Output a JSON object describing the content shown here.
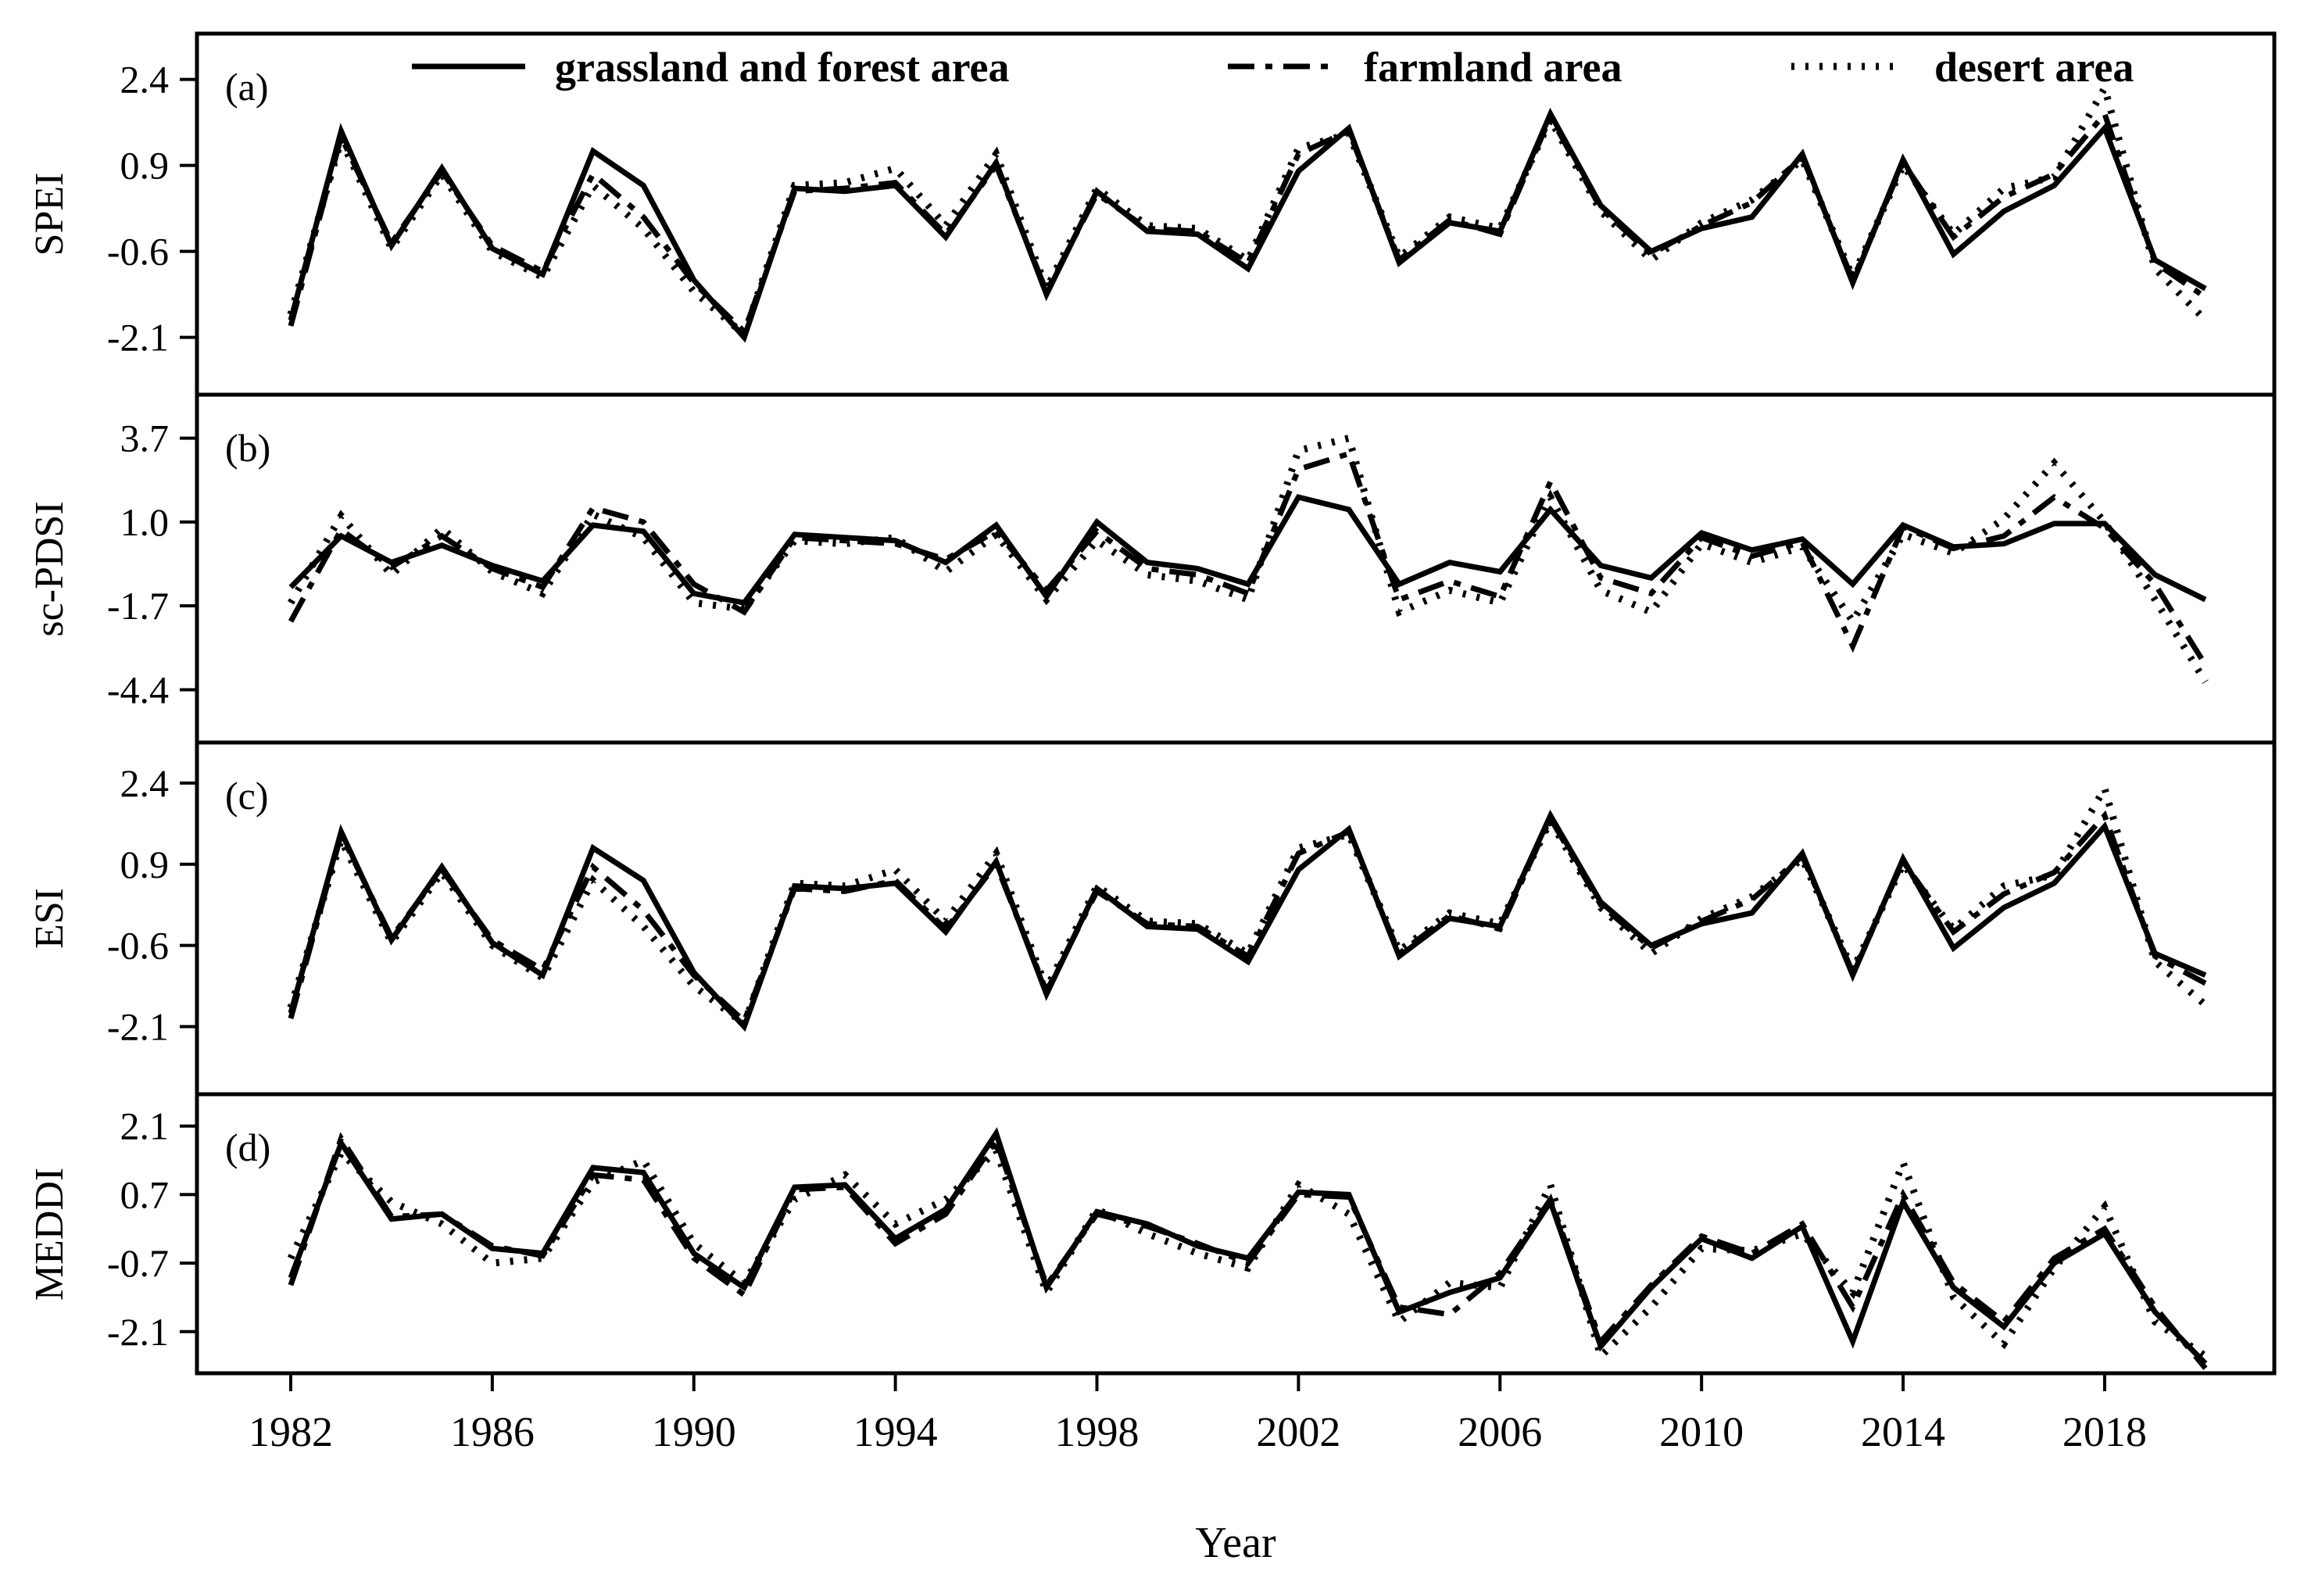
{
  "figure": {
    "xlabel": "Year",
    "x_tick_years": [
      1982,
      1986,
      1990,
      1994,
      1998,
      2002,
      2006,
      2010,
      2014,
      2018
    ],
    "years": [
      1982,
      1983,
      1984,
      1985,
      1986,
      1987,
      1988,
      1989,
      1990,
      1991,
      1992,
      1993,
      1994,
      1995,
      1996,
      1997,
      1998,
      1999,
      2000,
      2001,
      2002,
      2003,
      2004,
      2005,
      2006,
      2007,
      2008,
      2009,
      2010,
      2011,
      2012,
      2013,
      2014,
      2015,
      2016,
      2017,
      2018,
      2019,
      2020
    ],
    "legend": [
      {
        "label": "grassland and forest area",
        "style": "solid"
      },
      {
        "label": "farmland area",
        "style": "dashdot"
      },
      {
        "label": "desert area",
        "style": "dotted"
      }
    ],
    "colors": {
      "line": "#000000",
      "background": "#ffffff"
    }
  },
  "chart_data": [
    {
      "type": "line",
      "panel": "(a)",
      "ylabel": "SPEI",
      "yticks": [
        2.4,
        0.9,
        -0.6,
        -2.1
      ],
      "ylim": [
        -3.1,
        3.2
      ],
      "grid": false,
      "legend_position": "top-inside",
      "series": [
        {
          "name": "grassland and forest area",
          "values": [
            -1.8,
            1.5,
            -0.5,
            0.85,
            -0.55,
            -1.0,
            1.15,
            0.55,
            -1.1,
            -2.1,
            0.5,
            0.45,
            0.55,
            -0.35,
            0.95,
            -1.35,
            0.45,
            -0.25,
            -0.3,
            -0.9,
            0.8,
            1.55,
            -0.8,
            -0.1,
            -0.25,
            1.8,
            0.2,
            -0.6,
            -0.2,
            0.0,
            1.1,
            -1.15,
            1.0,
            -0.65,
            0.1,
            0.55,
            1.55,
            -0.75,
            -1.25
          ]
        },
        {
          "name": "farmland area",
          "values": [
            -1.9,
            1.4,
            -0.45,
            0.8,
            -0.5,
            -0.95,
            0.75,
            0.0,
            -1.15,
            -2.0,
            0.45,
            0.5,
            0.6,
            -0.3,
            0.9,
            -1.3,
            0.4,
            -0.2,
            -0.25,
            -0.8,
            1.1,
            1.5,
            -0.75,
            -0.05,
            -0.3,
            1.75,
            0.15,
            -0.65,
            -0.15,
            0.25,
            1.05,
            -1.1,
            0.95,
            -0.35,
            0.35,
            0.75,
            1.8,
            -0.8,
            -1.4
          ]
        },
        {
          "name": "desert area",
          "values": [
            -1.7,
            1.35,
            -0.55,
            0.75,
            -0.6,
            -1.05,
            0.55,
            -0.2,
            -1.3,
            -2.05,
            0.55,
            0.6,
            0.85,
            -0.15,
            1.1,
            -1.25,
            0.5,
            -0.15,
            -0.2,
            -0.75,
            1.2,
            1.45,
            -0.7,
            0.0,
            -0.2,
            1.7,
            0.1,
            -0.75,
            -0.1,
            0.3,
            1.0,
            -1.05,
            0.9,
            -0.3,
            0.5,
            0.7,
            2.25,
            -0.9,
            -1.8
          ]
        }
      ]
    },
    {
      "type": "line",
      "panel": "(b)",
      "ylabel": "sc-PDSI",
      "yticks": [
        3.7,
        1.0,
        -1.7,
        -4.4
      ],
      "ylim": [
        -6.1,
        5.1
      ],
      "grid": false,
      "series": [
        {
          "name": "grassland and forest area",
          "values": [
            -1.1,
            0.55,
            -0.3,
            0.25,
            -0.4,
            -0.9,
            0.9,
            0.7,
            -1.3,
            -1.6,
            0.6,
            0.5,
            0.4,
            -0.3,
            0.9,
            -1.4,
            1.0,
            -0.3,
            -0.5,
            -1.0,
            1.8,
            1.4,
            -1.0,
            -0.3,
            -0.6,
            1.4,
            -0.4,
            -0.8,
            0.65,
            0.1,
            0.45,
            -1.0,
            0.9,
            0.2,
            0.3,
            0.95,
            0.95,
            -0.7,
            -1.5
          ]
        },
        {
          "name": "farmland area",
          "values": [
            -2.2,
            0.75,
            -0.45,
            0.55,
            -0.5,
            -1.1,
            1.45,
            1.0,
            -1.0,
            -1.9,
            0.5,
            0.4,
            0.3,
            -0.2,
            0.7,
            -1.2,
            0.7,
            -0.5,
            -0.7,
            -1.3,
            2.7,
            3.2,
            -1.5,
            -0.9,
            -1.4,
            2.3,
            -0.8,
            -1.3,
            0.5,
            -0.1,
            0.35,
            -3.0,
            0.85,
            0.15,
            0.55,
            1.8,
            0.8,
            -1.0,
            -3.6
          ]
        },
        {
          "name": "desert area",
          "values": [
            -1.6,
            1.2,
            -0.7,
            0.8,
            -0.6,
            -1.3,
            1.25,
            0.5,
            -1.6,
            -1.8,
            0.4,
            0.3,
            0.5,
            -0.6,
            0.6,
            -1.5,
            0.4,
            -0.7,
            -0.9,
            -1.5,
            3.3,
            3.7,
            -1.9,
            -1.2,
            -1.6,
            1.8,
            -1.2,
            -1.9,
            0.3,
            -0.3,
            0.2,
            -2.2,
            0.6,
            0.0,
            1.1,
            2.9,
            1.0,
            -1.5,
            -4.15
          ]
        }
      ]
    },
    {
      "type": "line",
      "panel": "(c)",
      "ylabel": "ESI",
      "yticks": [
        2.4,
        0.9,
        -0.6,
        -2.1
      ],
      "ylim": [
        -3.35,
        3.15
      ],
      "grid": false,
      "series": [
        {
          "name": "grassland and forest area",
          "values": [
            -1.85,
            1.5,
            -0.5,
            0.85,
            -0.55,
            -1.15,
            1.2,
            0.6,
            -1.1,
            -2.1,
            0.5,
            0.45,
            0.55,
            -0.35,
            0.95,
            -1.5,
            0.45,
            -0.25,
            -0.3,
            -0.9,
            0.8,
            1.55,
            -0.8,
            -0.1,
            -0.25,
            1.8,
            0.2,
            -0.6,
            -0.2,
            0.0,
            1.1,
            -1.15,
            1.0,
            -0.65,
            0.1,
            0.55,
            1.6,
            -0.75,
            -1.15
          ]
        },
        {
          "name": "farmland area",
          "values": [
            -1.95,
            1.45,
            -0.45,
            0.8,
            -0.5,
            -1.05,
            0.85,
            0.05,
            -1.15,
            -2.0,
            0.45,
            0.4,
            0.6,
            -0.3,
            0.9,
            -1.45,
            0.4,
            -0.2,
            -0.25,
            -0.8,
            1.1,
            1.5,
            -0.75,
            -0.05,
            -0.3,
            1.75,
            0.15,
            -0.65,
            -0.15,
            0.25,
            1.05,
            -1.1,
            0.95,
            -0.35,
            0.35,
            0.75,
            1.8,
            -0.8,
            -1.3
          ]
        },
        {
          "name": "desert area",
          "values": [
            -1.75,
            1.35,
            -0.55,
            0.75,
            -0.6,
            -1.2,
            0.6,
            -0.25,
            -1.35,
            -2.05,
            0.55,
            0.5,
            0.8,
            -0.15,
            1.1,
            -1.4,
            0.5,
            -0.15,
            -0.2,
            -0.75,
            1.2,
            1.45,
            -0.7,
            0.0,
            -0.2,
            1.7,
            0.1,
            -0.75,
            -0.1,
            0.3,
            1.0,
            -1.05,
            0.9,
            -0.3,
            0.5,
            0.7,
            2.3,
            -0.9,
            -1.7
          ]
        }
      ]
    },
    {
      "type": "line",
      "panel": "(d)",
      "ylabel": "MEDDI",
      "yticks": [
        2.1,
        0.7,
        -0.7,
        -2.1
      ],
      "ylim": [
        -2.95,
        2.75
      ],
      "grid": false,
      "series": [
        {
          "name": "grassland and forest area",
          "values": [
            -1.0,
            1.75,
            0.2,
            0.3,
            -0.4,
            -0.5,
            1.25,
            1.15,
            -0.5,
            -1.2,
            0.85,
            0.9,
            -0.2,
            0.4,
            1.95,
            -1.2,
            0.35,
            0.1,
            -0.35,
            -0.6,
            0.75,
            0.7,
            -1.7,
            -1.3,
            -1.0,
            0.55,
            -2.4,
            -1.2,
            -0.2,
            -0.6,
            0.05,
            -2.3,
            0.55,
            -1.2,
            -2.0,
            -0.7,
            -0.1,
            -1.7,
            -2.75
          ]
        },
        {
          "name": "farmland area",
          "values": [
            -1.15,
            1.85,
            0.25,
            0.3,
            -0.35,
            -0.55,
            1.1,
            1.0,
            -0.6,
            -1.35,
            0.8,
            0.85,
            -0.3,
            0.3,
            1.8,
            -1.15,
            0.3,
            0.05,
            -0.3,
            -0.7,
            0.7,
            0.65,
            -1.6,
            -1.75,
            -0.9,
            0.6,
            -2.3,
            -1.15,
            -0.15,
            -0.5,
            0.1,
            -1.6,
            0.7,
            -1.1,
            -1.9,
            -0.6,
            0.0,
            -1.6,
            -2.85
          ]
        },
        {
          "name": "desert area",
          "values": [
            -0.6,
            1.55,
            0.55,
            0.1,
            -0.7,
            -0.6,
            0.95,
            1.4,
            -0.3,
            -1.1,
            0.6,
            1.1,
            0.1,
            0.6,
            1.6,
            -1.3,
            0.4,
            -0.1,
            -0.5,
            -0.8,
            0.9,
            0.3,
            -1.9,
            -1.1,
            -1.2,
            0.9,
            -2.6,
            -1.6,
            -0.4,
            -0.45,
            -0.1,
            -1.3,
            1.35,
            -1.4,
            -2.35,
            -0.8,
            0.45,
            -1.9,
            -2.6
          ]
        }
      ]
    }
  ]
}
